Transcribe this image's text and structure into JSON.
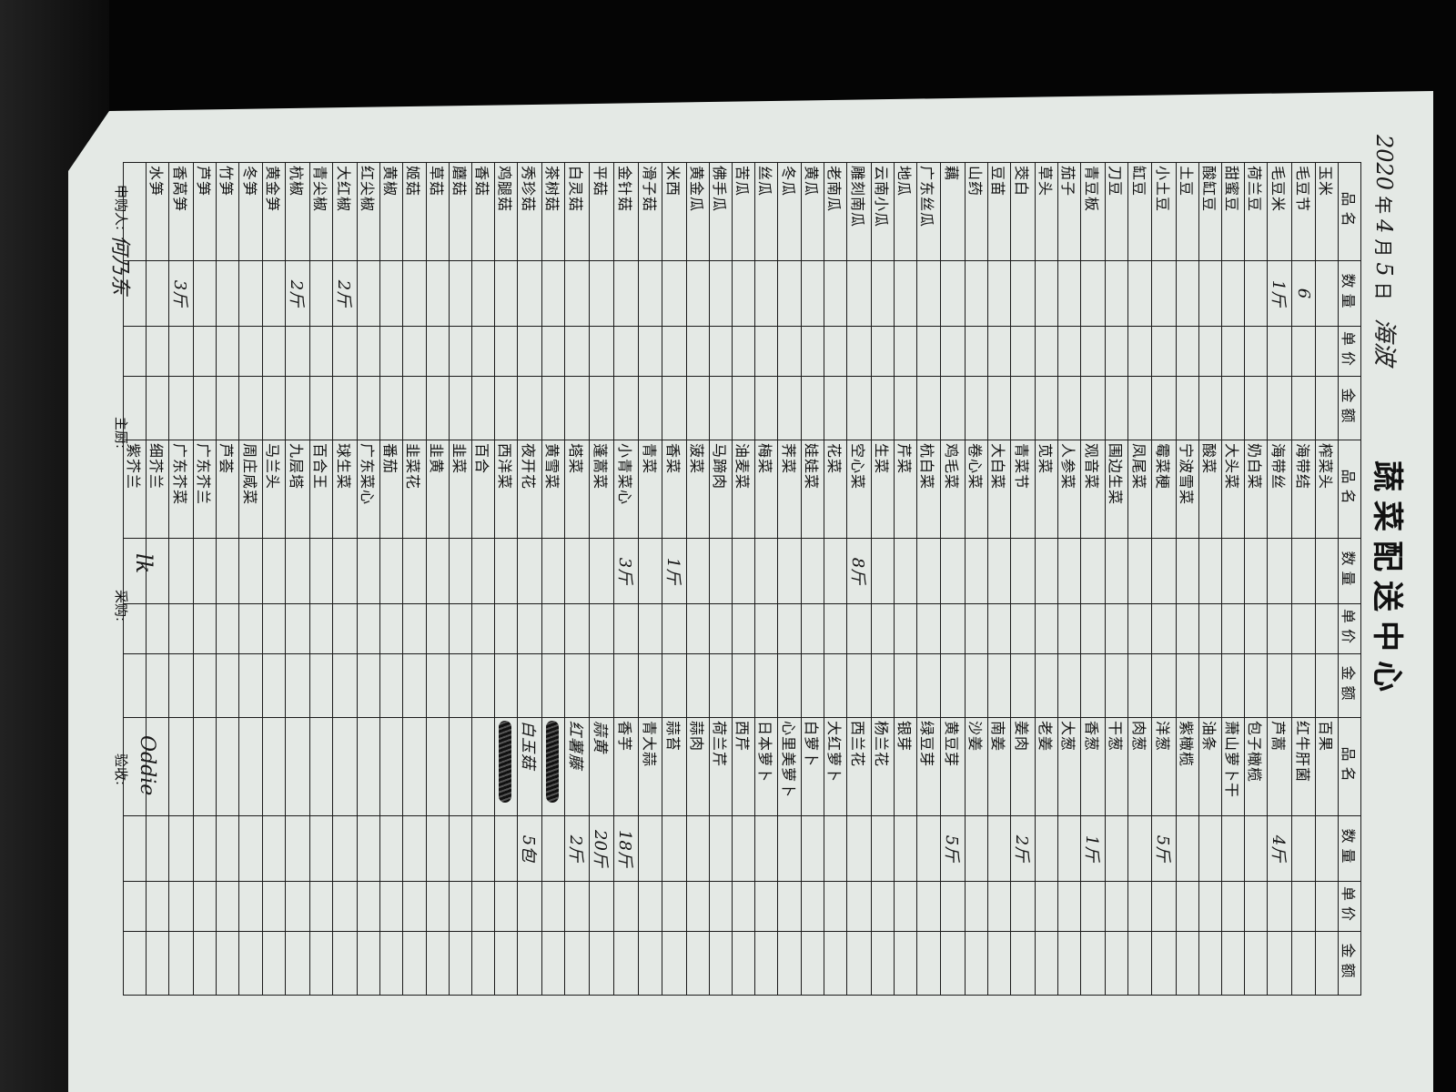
{
  "title": "蔬菜配送中心",
  "date": {
    "year": "2020",
    "year_label": "年",
    "month": "4",
    "month_label": "月",
    "day": "5",
    "day_label": "日",
    "signature": "海波"
  },
  "headers": {
    "name": "品名",
    "qty": "数量",
    "price": "单价",
    "amount": "金额"
  },
  "columns": [
    {
      "items": [
        {
          "name": "玉米"
        },
        {
          "name": "毛豆节",
          "qty": "6"
        },
        {
          "name": "毛豆米",
          "qty": "1斤"
        },
        {
          "name": "荷兰豆"
        },
        {
          "name": "甜蜜豆"
        },
        {
          "name": "酸缸豆"
        },
        {
          "name": "土豆"
        },
        {
          "name": "小土豆"
        },
        {
          "name": "缸豆"
        },
        {
          "name": "刀豆"
        },
        {
          "name": "青豆板"
        },
        {
          "name": "茄子"
        },
        {
          "name": "草头"
        },
        {
          "name": "茭白"
        },
        {
          "name": "豆苗"
        },
        {
          "name": "山药"
        },
        {
          "name": "藕"
        },
        {
          "name": "广东丝瓜"
        },
        {
          "name": "地瓜"
        },
        {
          "name": "云南小瓜"
        },
        {
          "name": "雕刻南瓜"
        },
        {
          "name": "老南瓜"
        },
        {
          "name": "黄瓜"
        },
        {
          "name": "冬瓜"
        },
        {
          "name": "丝瓜"
        },
        {
          "name": "苦瓜"
        },
        {
          "name": "佛手瓜"
        },
        {
          "name": "黄金瓜"
        },
        {
          "name": "米西"
        },
        {
          "name": "滑子菇"
        },
        {
          "name": "金针菇"
        },
        {
          "name": "平菇"
        },
        {
          "name": "白灵菇"
        },
        {
          "name": "茶树菇"
        },
        {
          "name": "秀珍菇"
        },
        {
          "name": "鸡腿菇"
        },
        {
          "name": "香菇"
        },
        {
          "name": "蘑菇"
        },
        {
          "name": "草菇"
        },
        {
          "name": "姬菇"
        },
        {
          "name": "黄椒"
        },
        {
          "name": "红尖椒"
        },
        {
          "name": "大红椒",
          "qty": "2斤"
        },
        {
          "name": "青尖椒"
        },
        {
          "name": "杭椒",
          "qty": "2斤"
        },
        {
          "name": "黄金笋"
        },
        {
          "name": "冬笋"
        },
        {
          "name": "竹笋"
        },
        {
          "name": "芦笋"
        },
        {
          "name": "香莴笋",
          "qty": "3斤"
        },
        {
          "name": "水笋"
        }
      ]
    },
    {
      "items": [
        {
          "name": "榨菜头"
        },
        {
          "name": "海带结"
        },
        {
          "name": "海带丝"
        },
        {
          "name": "奶白菜"
        },
        {
          "name": "大头菜"
        },
        {
          "name": "酸菜"
        },
        {
          "name": "宁波雪菜"
        },
        {
          "name": "霉菜梗"
        },
        {
          "name": "凤尾菜"
        },
        {
          "name": "围边生菜"
        },
        {
          "name": "观音菜"
        },
        {
          "name": "人参菜"
        },
        {
          "name": "苋菜"
        },
        {
          "name": "青菜节"
        },
        {
          "name": "大白菜"
        },
        {
          "name": "卷心菜"
        },
        {
          "name": "鸡毛菜"
        },
        {
          "name": "杭白菜"
        },
        {
          "name": "芹菜"
        },
        {
          "name": "生菜"
        },
        {
          "name": "空心菜",
          "qty": "8斤"
        },
        {
          "name": "花菜"
        },
        {
          "name": "娃娃菜"
        },
        {
          "name": "荠菜"
        },
        {
          "name": "梅菜"
        },
        {
          "name": "油麦菜"
        },
        {
          "name": "马蹄肉"
        },
        {
          "name": "菠菜"
        },
        {
          "name": "香菜",
          "qty": "1斤"
        },
        {
          "name": "青菜"
        },
        {
          "name": "小青菜心",
          "qty": "3斤"
        },
        {
          "name": "蓬蒿菜"
        },
        {
          "name": "塔菜"
        },
        {
          "name": "黄雪菜"
        },
        {
          "name": "夜开花"
        },
        {
          "name": "西洋菜"
        },
        {
          "name": "百合"
        },
        {
          "name": "韭菜"
        },
        {
          "name": "韭黄"
        },
        {
          "name": "韭菜花"
        },
        {
          "name": "番茄"
        },
        {
          "name": "广东菜心"
        },
        {
          "name": "球生菜"
        },
        {
          "name": "百合王"
        },
        {
          "name": "九层塔"
        },
        {
          "name": "马兰头"
        },
        {
          "name": "周庄咸菜"
        },
        {
          "name": "芦荟"
        },
        {
          "name": "广东芥兰"
        },
        {
          "name": "广东芥菜"
        },
        {
          "name": "细芥兰"
        },
        {
          "name": "紫芥兰"
        }
      ]
    },
    {
      "items": [
        {
          "name": "百果"
        },
        {
          "name": "红牛肝菌"
        },
        {
          "name": "芦蒿",
          "qty": "4斤"
        },
        {
          "name": "包子橄榄"
        },
        {
          "name": "萧山萝卜干"
        },
        {
          "name": "油条"
        },
        {
          "name": "紫橄榄"
        },
        {
          "name": "洋葱",
          "qty": "5斤"
        },
        {
          "name": "肉葱"
        },
        {
          "name": "干葱"
        },
        {
          "name": "香葱",
          "qty": "1斤"
        },
        {
          "name": "大葱"
        },
        {
          "name": "老姜"
        },
        {
          "name": "姜肉",
          "qty": "2斤"
        },
        {
          "name": "南姜"
        },
        {
          "name": "沙姜"
        },
        {
          "name": "黄豆芽",
          "qty": "5斤"
        },
        {
          "name": "绿豆芽"
        },
        {
          "name": "银芽"
        },
        {
          "name": "杨兰花"
        },
        {
          "name": "西兰花"
        },
        {
          "name": "大红萝卜"
        },
        {
          "name": "白萝卜"
        },
        {
          "name": "心里美萝卜"
        },
        {
          "name": "日本萝卜"
        },
        {
          "name": "西芹"
        },
        {
          "name": "荷兰芹"
        },
        {
          "name": "蒜肉"
        },
        {
          "name": "蒜苔"
        },
        {
          "name": "青大蒜"
        },
        {
          "name": "香芋",
          "qty": "18斤"
        },
        {
          "name": "蒜黄",
          "qty": "20斤",
          "handwritten": true
        },
        {
          "name": "红薯藤",
          "qty": "2斤",
          "handwritten": true
        },
        {
          "name": "",
          "scribbled": true
        },
        {
          "name": "白玉菇",
          "qty": "5包",
          "handwritten": true
        },
        {
          "name": "",
          "scribbled": true
        }
      ]
    }
  ],
  "footer": {
    "requester_label": "申购人:",
    "requester_signature": "何乃东",
    "chef_label": "主厨:",
    "purchaser_label": "采购:",
    "purchaser_signature": "lk",
    "inspector_label": "验收:",
    "inspector_signature": "Oddie"
  }
}
